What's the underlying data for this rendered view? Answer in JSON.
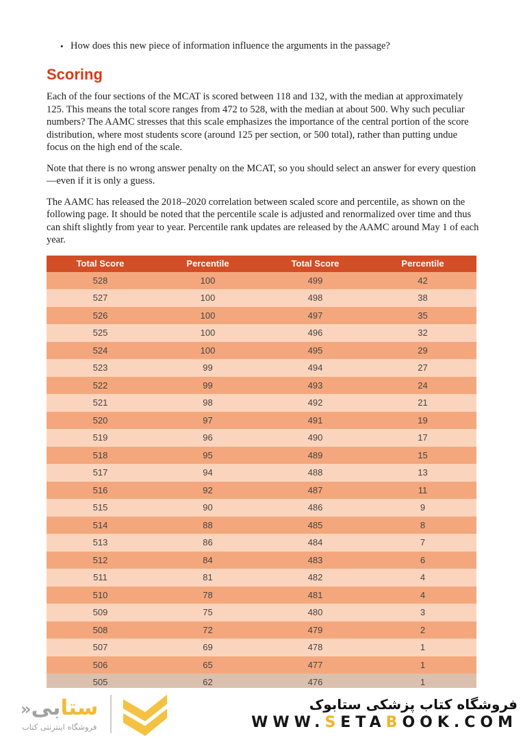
{
  "page": {
    "bullet_char": "•",
    "bullet": "How does this new piece of information influence the arguments in the passage?",
    "heading": "Scoring",
    "paragraphs": [
      "Each of the four sections of the MCAT is scored between 118 and 132, with the median at approximately 125. This means the total score ranges from 472 to 528, with the median at about 500. Why such peculiar numbers? The AAMC stresses that this scale emphasizes the importance of the central portion of the score distribution, where most students score (around 125 per section, or 500 total), rather than putting undue focus on the high end of the scale.",
      "Note that there is no wrong answer penalty on the MCAT, so you should select an answer for every question—even if it is only a guess.",
      "The AAMC has released the 2018–2020 correlation between scaled score and percentile, as shown on the following page. It should be noted that the percentile scale is adjusted and renormalized over time and thus can shift slightly from year to year. Percentile rank updates are released by the AAMC around May 1 of each year."
    ]
  },
  "table": {
    "headers": [
      "Total Score",
      "Percentile",
      "Total Score",
      "Percentile"
    ],
    "rows": [
      [
        "528",
        "100",
        "499",
        "42"
      ],
      [
        "527",
        "100",
        "498",
        "38"
      ],
      [
        "526",
        "100",
        "497",
        "35"
      ],
      [
        "525",
        "100",
        "496",
        "32"
      ],
      [
        "524",
        "100",
        "495",
        "29"
      ],
      [
        "523",
        "99",
        "494",
        "27"
      ],
      [
        "522",
        "99",
        "493",
        "24"
      ],
      [
        "521",
        "98",
        "492",
        "21"
      ],
      [
        "520",
        "97",
        "491",
        "19"
      ],
      [
        "519",
        "96",
        "490",
        "17"
      ],
      [
        "518",
        "95",
        "489",
        "15"
      ],
      [
        "517",
        "94",
        "488",
        "13"
      ],
      [
        "516",
        "92",
        "487",
        "11"
      ],
      [
        "515",
        "90",
        "486",
        "9"
      ],
      [
        "514",
        "88",
        "485",
        "8"
      ],
      [
        "513",
        "86",
        "484",
        "7"
      ],
      [
        "512",
        "84",
        "483",
        "6"
      ],
      [
        "511",
        "81",
        "482",
        "4"
      ],
      [
        "510",
        "78",
        "481",
        "4"
      ],
      [
        "509",
        "75",
        "480",
        "3"
      ],
      [
        "508",
        "72",
        "479",
        "2"
      ],
      [
        "507",
        "69",
        "478",
        "1"
      ],
      [
        "506",
        "65",
        "477",
        "1"
      ],
      [
        "505",
        "62",
        "476",
        "1"
      ]
    ]
  },
  "footer": {
    "brand_yellow": "ستا",
    "brand_gray": "بی",
    "brand_mark": "«",
    "brand_subtitle": "فروشگاه اینترنتی کتاب",
    "store_title": "فروشگاه کتاب پزشکی ستابوک",
    "url_segments": [
      {
        "text": "WWW.",
        "accent": false
      },
      {
        "text": "S",
        "accent": true
      },
      {
        "text": "ETA",
        "accent": false
      },
      {
        "text": "B",
        "accent": true
      },
      {
        "text": "OOK.COM",
        "accent": false
      }
    ]
  },
  "colors": {
    "heading_red": "#d73b15",
    "table_header_bg": "#d14e26",
    "row_dark": "#f4a77c",
    "row_light": "#fbd4bd",
    "row_last_muted": "#dcc0ae",
    "bottom_bar_red": "#d2190b",
    "brand_yellow": "#f2bb35",
    "brand_gray": "#a2a2a2",
    "url_accent": "#f0b429"
  }
}
